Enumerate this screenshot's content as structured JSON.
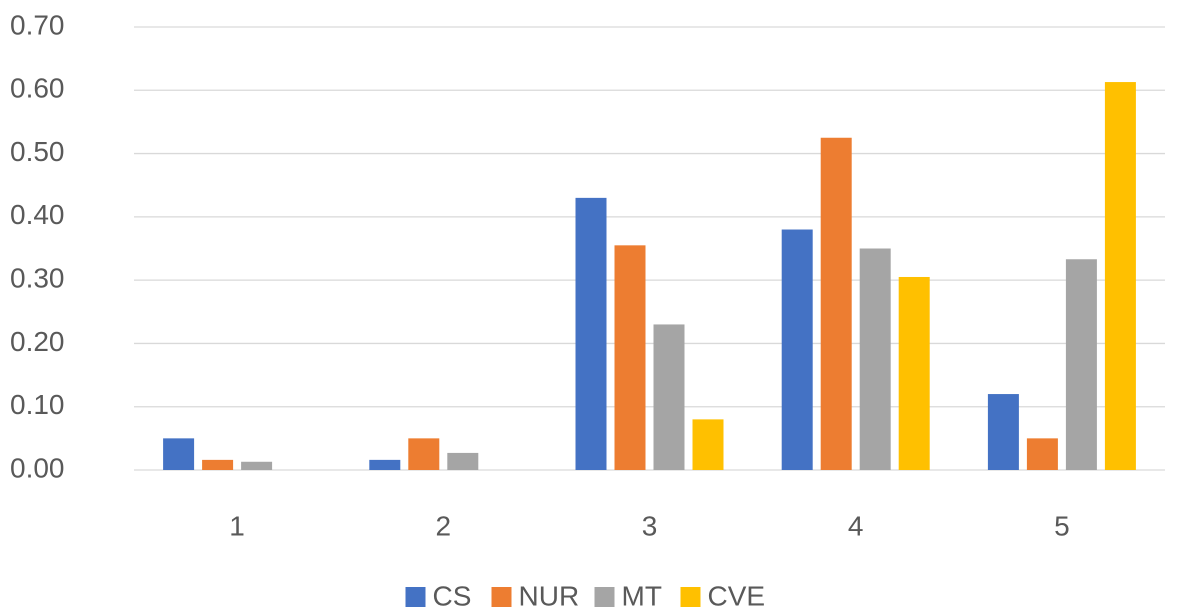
{
  "chart_data": {
    "type": "bar",
    "categories": [
      "1",
      "2",
      "3",
      "4",
      "5"
    ],
    "series": [
      {
        "name": "CS",
        "color": "#4472c4",
        "values": [
          0.05,
          0.016,
          0.43,
          0.38,
          0.12
        ]
      },
      {
        "name": "NUR",
        "color": "#ed7d31",
        "values": [
          0.016,
          0.05,
          0.355,
          0.525,
          0.05
        ]
      },
      {
        "name": "MT",
        "color": "#a5a5a5",
        "values": [
          0.013,
          0.027,
          0.23,
          0.35,
          0.333
        ]
      },
      {
        "name": "CVE",
        "color": "#ffc000",
        "values": [
          0,
          0,
          0.08,
          0.305,
          0.613
        ]
      }
    ],
    "ylim": [
      0,
      0.7
    ],
    "yticks": [
      {
        "value": 0,
        "label": "0.00"
      },
      {
        "value": 0.1,
        "label": "0.10"
      },
      {
        "value": 0.2,
        "label": "0.20"
      },
      {
        "value": 0.3,
        "label": "0.30"
      },
      {
        "value": 0.4,
        "label": "0.40"
      },
      {
        "value": 0.5,
        "label": "0.50"
      },
      {
        "value": 0.6,
        "label": "0.60"
      },
      {
        "value": 0.7,
        "label": "0.70"
      }
    ],
    "grid": true,
    "legend": "bottom"
  }
}
